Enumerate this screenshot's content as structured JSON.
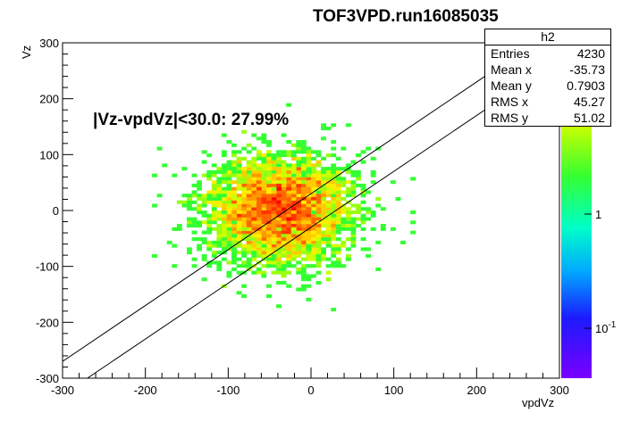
{
  "chart_data": {
    "type": "heatmap",
    "title": "TOF3VPD.run16085035",
    "xlabel": "vpdVz",
    "ylabel": "Vz",
    "xlim": [
      -300,
      300
    ],
    "ylim": [
      -300,
      300
    ],
    "x_ticks": [
      "-300",
      "-200",
      "-100",
      "0",
      "100",
      "200",
      "300"
    ],
    "y_ticks": [
      "-300",
      "-200",
      "-100",
      "0",
      "100",
      "200",
      "300"
    ],
    "colorbar_ticks": [
      "1",
      "10^-1"
    ],
    "z_scale": "log",
    "annotation": "|Vz-vpdVz|<30.0: 27.99%",
    "lines": [
      {
        "from": [
          -300,
          -270
        ],
        "to": [
          300,
          330
        ]
      },
      {
        "from": [
          -300,
          -330
        ],
        "to": [
          300,
          270
        ]
      }
    ],
    "distribution": {
      "center_x": -35.73,
      "center_y": 0.7903,
      "rms_x": 45.27,
      "rms_y": 51.02,
      "entries": 4230
    },
    "stats": {
      "name": "h2",
      "rows": [
        {
          "label": "Entries",
          "value": "4230"
        },
        {
          "label": "Mean x",
          "value": "-35.73"
        },
        {
          "label": "Mean y",
          "value": "0.7903"
        },
        {
          "label": "RMS x",
          "value": "45.27"
        },
        {
          "label": "RMS y",
          "value": "51.02"
        }
      ]
    }
  }
}
